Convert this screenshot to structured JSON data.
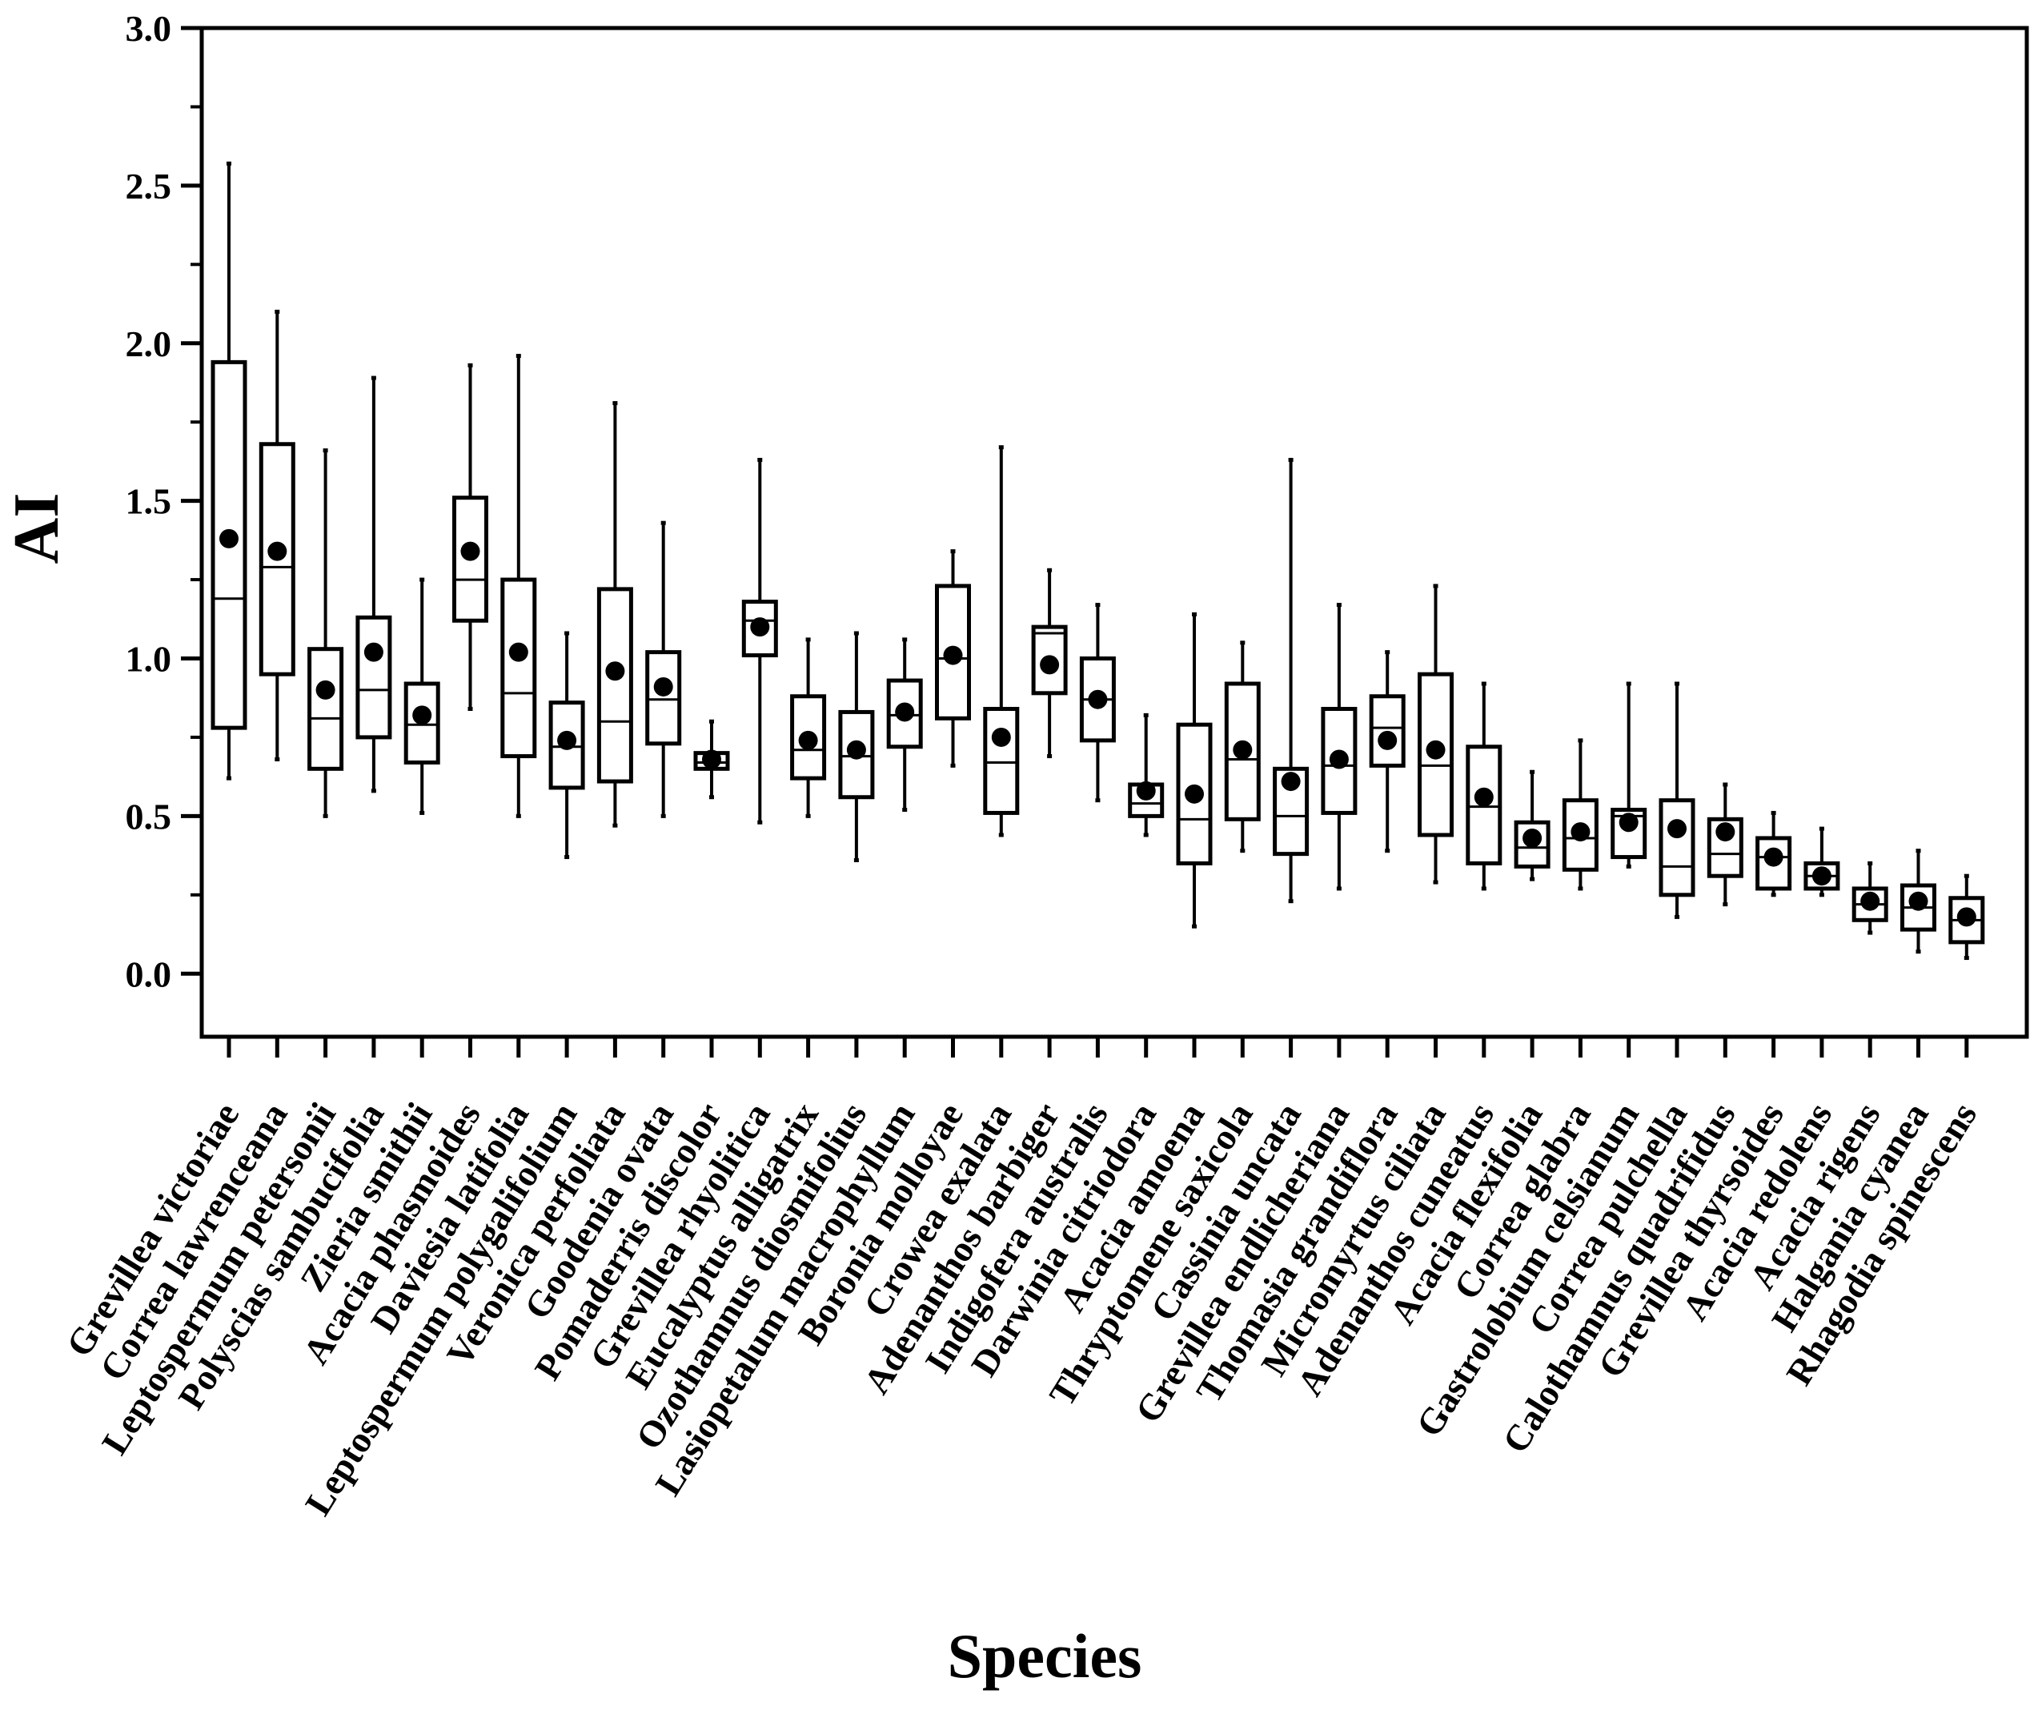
{
  "chart_data": {
    "type": "boxplot",
    "title": "",
    "xlabel": "Species",
    "ylabel": "AI",
    "ylim": [
      -0.2,
      3.0
    ],
    "yticks": [
      "0.0",
      "0.5",
      "1.0",
      "1.5",
      "2.0",
      "2.5",
      "3.0"
    ],
    "grid": false,
    "legend": "none",
    "categories": [
      "Grevillea victoriae",
      "Correa lawrenceana",
      "Leptospermum petersonii",
      "Polyscias sambucifolia",
      "Zieria smithii",
      "Acacia phasmoides",
      "Daviesia latifolia",
      "Leptospermum polygalifolium",
      "Veronica perfoliata",
      "Goodenia ovata",
      "Pomaderris discolor",
      "Grevillea rhyolitica",
      "Eucalyptus alligatrix",
      "Ozothamnus diosmifolius",
      "Lasiopetalum macrophyllum",
      "Boronia molloyae",
      "Crowea exalata",
      "Adenanthos barbiger",
      "Indigofera australis",
      "Darwinia citriodora",
      "Acacia amoena",
      "Thryptomene saxicola",
      "Cassinia uncata",
      "Grevillea endlicheriana",
      "Thomasia grandiflora",
      "Micromyrtus ciliata",
      "Adenanthos cuneatus",
      "Acacia flexifolia",
      "Correa glabra",
      "Gastrolobium celsianum",
      "Correa pulchella",
      "Calothamnus quadrifidus",
      "Grevillea thyrsoides",
      "Acacia redolens",
      "Acacia rigens",
      "Halgania cyanea",
      "Rhagodia spinescens"
    ],
    "series": [
      {
        "name": "whisker_min",
        "values": [
          0.62,
          0.68,
          0.5,
          0.58,
          0.51,
          0.84,
          0.5,
          0.37,
          0.47,
          0.5,
          0.56,
          0.48,
          0.5,
          0.36,
          0.52,
          0.66,
          0.44,
          0.69,
          0.55,
          0.44,
          0.15,
          0.39,
          0.23,
          0.27,
          0.39,
          0.29,
          0.27,
          0.3,
          0.27,
          0.34,
          0.18,
          0.22,
          0.25,
          0.25,
          0.13,
          0.07,
          0.05
        ]
      },
      {
        "name": "q1",
        "values": [
          0.78,
          0.95,
          0.65,
          0.75,
          0.67,
          1.12,
          0.69,
          0.59,
          0.61,
          0.73,
          0.65,
          1.01,
          0.62,
          0.56,
          0.72,
          0.81,
          0.51,
          0.89,
          0.74,
          0.5,
          0.35,
          0.49,
          0.38,
          0.51,
          0.66,
          0.44,
          0.35,
          0.34,
          0.33,
          0.37,
          0.25,
          0.31,
          0.27,
          0.27,
          0.17,
          0.14,
          0.1
        ]
      },
      {
        "name": "median",
        "values": [
          1.19,
          1.29,
          0.81,
          0.9,
          0.79,
          1.25,
          0.89,
          0.72,
          0.8,
          0.87,
          0.67,
          1.12,
          0.71,
          0.69,
          0.82,
          1.0,
          0.67,
          1.08,
          0.87,
          0.54,
          0.49,
          0.68,
          0.5,
          0.66,
          0.78,
          0.66,
          0.53,
          0.4,
          0.43,
          0.5,
          0.34,
          0.38,
          0.37,
          0.31,
          0.22,
          0.21,
          0.17
        ]
      },
      {
        "name": "q3",
        "values": [
          1.94,
          1.68,
          1.03,
          1.13,
          0.92,
          1.51,
          1.25,
          0.86,
          1.22,
          1.02,
          0.7,
          1.18,
          0.88,
          0.83,
          0.93,
          1.23,
          0.84,
          1.1,
          1.0,
          0.6,
          0.79,
          0.92,
          0.65,
          0.84,
          0.88,
          0.95,
          0.72,
          0.48,
          0.55,
          0.52,
          0.55,
          0.49,
          0.43,
          0.35,
          0.27,
          0.28,
          0.24
        ]
      },
      {
        "name": "whisker_max",
        "values": [
          2.57,
          2.1,
          1.66,
          1.89,
          1.25,
          1.93,
          1.96,
          1.08,
          1.81,
          1.43,
          0.8,
          1.63,
          1.06,
          1.08,
          1.06,
          1.34,
          1.67,
          1.28,
          1.17,
          0.82,
          1.14,
          1.05,
          1.63,
          1.17,
          1.02,
          1.23,
          0.92,
          0.64,
          0.74,
          0.92,
          0.92,
          0.6,
          0.51,
          0.46,
          0.35,
          0.39,
          0.31
        ]
      },
      {
        "name": "mean",
        "values": [
          1.38,
          1.34,
          0.9,
          1.02,
          0.82,
          1.34,
          1.02,
          0.74,
          0.96,
          0.91,
          0.68,
          1.1,
          0.74,
          0.71,
          0.83,
          1.01,
          0.75,
          0.98,
          0.87,
          0.58,
          0.57,
          0.71,
          0.61,
          0.68,
          0.74,
          0.71,
          0.56,
          0.43,
          0.45,
          0.48,
          0.46,
          0.45,
          0.37,
          0.31,
          0.23,
          0.23,
          0.18
        ]
      }
    ]
  }
}
